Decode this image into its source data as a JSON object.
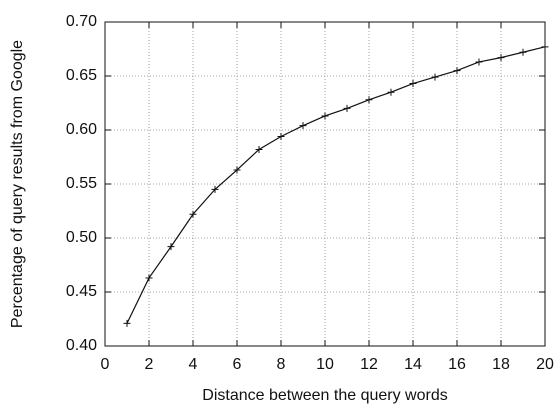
{
  "chart_data": {
    "type": "line",
    "xlabel": "Distance between the query words",
    "ylabel": "Percentage of query results from Google",
    "x": [
      1,
      2,
      3,
      4,
      5,
      6,
      7,
      8,
      9,
      10,
      11,
      12,
      13,
      14,
      15,
      16,
      17,
      18,
      19,
      20
    ],
    "series": [
      {
        "color": "#111111",
        "values": [
          0.421,
          0.463,
          0.492,
          0.522,
          0.545,
          0.563,
          0.582,
          0.594,
          0.604,
          0.613,
          0.62,
          0.628,
          0.635,
          0.643,
          0.649,
          0.655,
          0.663,
          0.667,
          0.672,
          0.677
        ]
      }
    ],
    "xlim": [
      0,
      20
    ],
    "xticks": [
      0,
      2,
      4,
      6,
      8,
      10,
      12,
      14,
      16,
      18,
      20
    ],
    "ylim": [
      0.4,
      0.7
    ],
    "yticks": [
      {
        "value": 0.4,
        "label": "0.40"
      },
      {
        "value": 0.45,
        "label": "0.45"
      },
      {
        "value": 0.5,
        "label": "0.50"
      },
      {
        "value": 0.55,
        "label": "0.55"
      },
      {
        "value": 0.6,
        "label": "0.60"
      },
      {
        "value": 0.65,
        "label": "0.65"
      },
      {
        "value": 0.7,
        "label": "0.70"
      }
    ],
    "grid": true
  }
}
